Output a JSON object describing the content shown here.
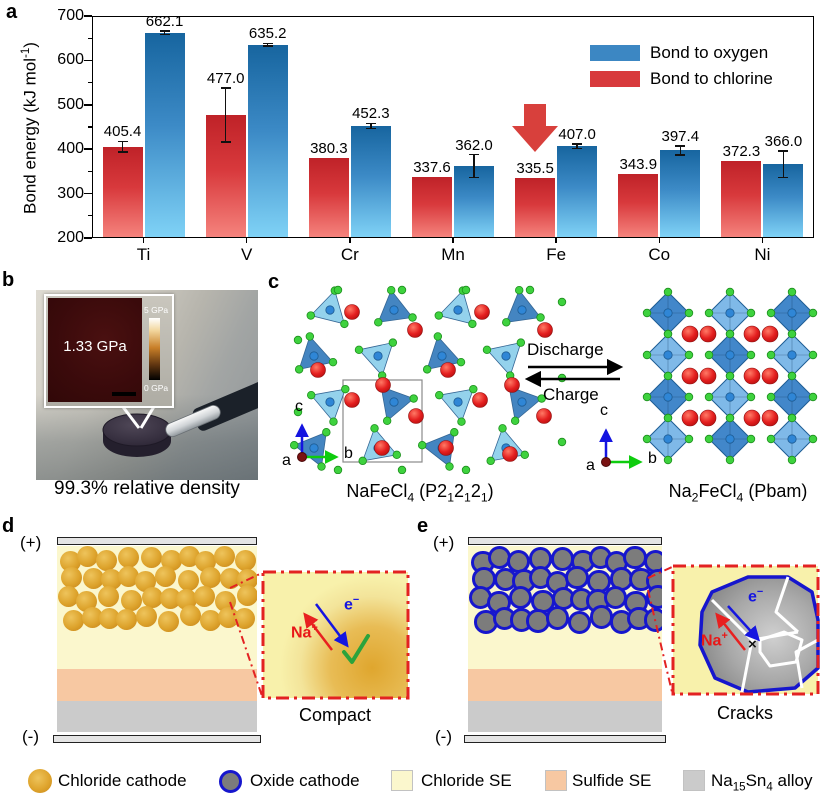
{
  "panel_letters": {
    "a": "a",
    "b": "b",
    "c": "c",
    "d": "d",
    "e": "e"
  },
  "chart_data": {
    "type": "bar",
    "title": "",
    "ylabel_rich": [
      [
        "t",
        "Bond energy (kJ mol"
      ],
      [
        "p",
        "-1"
      ],
      [
        "t",
        ")"
      ]
    ],
    "ylabel": "Bond energy (kJ mol-1)",
    "categories": [
      "Ti",
      "V",
      "Cr",
      "Mn",
      "Fe",
      "Co",
      "Ni"
    ],
    "ylim": [
      200,
      700
    ],
    "yticks": [
      200,
      300,
      400,
      500,
      600,
      700
    ],
    "grid": false,
    "legend_position": "top-right",
    "series": [
      {
        "name": "Bond to oxygen",
        "color": "#3c87c3",
        "values": [
          662.1,
          635.2,
          452.3,
          362.0,
          407.0,
          397.4,
          366.0
        ],
        "errors": [
          4,
          3,
          6,
          26,
          5,
          10,
          30
        ]
      },
      {
        "name": "Bond to chlorine",
        "color": "#d83a3c",
        "values": [
          405.4,
          477.0,
          380.3,
          337.6,
          335.5,
          343.9,
          372.3
        ],
        "errors": [
          12,
          61,
          0,
          0,
          0,
          0,
          0
        ]
      }
    ],
    "annotation": {
      "type": "down-arrow",
      "target_category": "Fe",
      "target_series": "Bond to chlorine",
      "color": "#d8403c"
    }
  },
  "panel_b": {
    "pressure": "1.33 GPa",
    "scale_max": "5 GPa",
    "scale_min": "0 GPa",
    "caption": "99.3% relative density"
  },
  "panel_c": {
    "discharge": "Discharge",
    "charge": "Charge",
    "left_formula": [
      [
        "t",
        "NaFeCl"
      ],
      [
        "b",
        "4"
      ],
      [
        "t",
        " (P2"
      ],
      [
        "b",
        "1"
      ],
      [
        "t",
        "2"
      ],
      [
        "b",
        "1"
      ],
      [
        "t",
        "2"
      ],
      [
        "b",
        "1"
      ],
      [
        "t",
        ")"
      ]
    ],
    "right_formula": [
      [
        "t",
        "Na"
      ],
      [
        "b",
        "2"
      ],
      [
        "t",
        "FeCl"
      ],
      [
        "b",
        "4"
      ],
      [
        "t",
        " (Pbam)"
      ]
    ],
    "axis": {
      "a": "a",
      "b": "b",
      "c": "c"
    }
  },
  "panel_d": {
    "plus": "(+)",
    "minus": "(-)",
    "na": [
      [
        "t",
        "Na"
      ],
      [
        "p",
        "+"
      ]
    ],
    "electron": [
      [
        "t",
        "e"
      ],
      [
        "p",
        "−"
      ]
    ],
    "check": "✓",
    "caption": "Compact"
  },
  "panel_e": {
    "plus": "(+)",
    "minus": "(-)",
    "na": [
      [
        "t",
        "Na"
      ],
      [
        "p",
        "+"
      ]
    ],
    "electron": [
      [
        "t",
        "e"
      ],
      [
        "p",
        "−"
      ]
    ],
    "cross": "×",
    "caption": "Cracks"
  },
  "bottom_legend": {
    "items": [
      {
        "label": [
          [
            "t",
            "Chloride cathode"
          ]
        ]
      },
      {
        "label": [
          [
            "t",
            "Oxide cathode"
          ]
        ]
      },
      {
        "label": [
          [
            "t",
            "Chloride SE"
          ]
        ]
      },
      {
        "label": [
          [
            "t",
            "Sulfide SE"
          ]
        ]
      },
      {
        "label": [
          [
            "t",
            "Na"
          ],
          [
            "b",
            "15"
          ],
          [
            "t",
            "Sn"
          ],
          [
            "b",
            "4"
          ],
          [
            "t",
            " alloy"
          ]
        ]
      }
    ]
  },
  "colors": {
    "chloride_se": "#FBF7CD",
    "sulfide_se": "#F7C8A2",
    "alloy": "#CBCBCB",
    "oxide_ring": "#1616cd",
    "bar_red": "#d83a3c",
    "bar_blue": "#3c87c3",
    "arrow_red": "#d8403c"
  }
}
